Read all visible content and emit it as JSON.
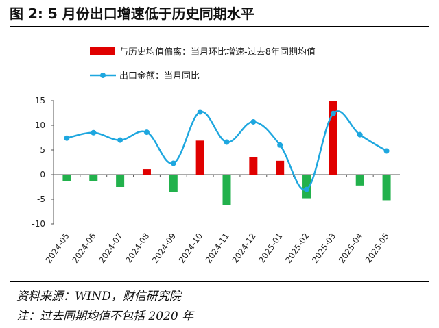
{
  "header": {
    "title": "图 2:  5 月份出口增速低于历史同期水平"
  },
  "notes": {
    "source": "资料来源：WIND，财信研究院",
    "footnote": "注：过去同期均值不包括 2020 年"
  },
  "colors": {
    "bar_pos": "#e00000",
    "bar_neg": "#22b14c",
    "line": "#1ea7df"
  },
  "chart_data": {
    "type": "bar",
    "categories": [
      "2024-05",
      "2024-06",
      "2024-07",
      "2024-08",
      "2024-09",
      "2024-10",
      "2024-11",
      "2024-12",
      "2025-01",
      "2025-02",
      "2025-03",
      "2025-04",
      "2025-05"
    ],
    "ylim": [
      -10,
      15
    ],
    "yticks": [
      "15",
      "10",
      "5",
      "0",
      "-5",
      "-10"
    ],
    "legend_position": "top",
    "series": [
      {
        "name": "与历史均值偏离：当月环比增速-过去8年同期均值",
        "kind": "bar",
        "values": [
          -1.3,
          -1.3,
          -2.5,
          1.1,
          -3.6,
          6.9,
          -6.2,
          3.5,
          2.8,
          -4.8,
          15.0,
          -2.2,
          -5.2
        ]
      },
      {
        "name": "出口金额：当月同比",
        "kind": "line",
        "values": [
          7.4,
          8.5,
          7.0,
          8.6,
          2.3,
          12.7,
          6.6,
          10.7,
          6.0,
          -3.0,
          12.4,
          8.1,
          4.8
        ]
      }
    ]
  }
}
